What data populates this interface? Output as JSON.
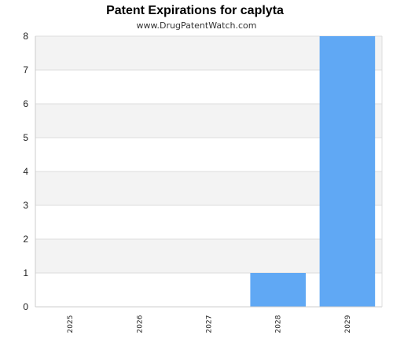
{
  "chart_data": {
    "type": "bar",
    "title": "Patent Expirations for caplyta",
    "subtitle": "www.DrugPatentWatch.com",
    "categories": [
      "2025",
      "2026",
      "2027",
      "2028",
      "2029"
    ],
    "values": [
      0,
      0,
      0,
      1,
      8
    ],
    "xlabel": "",
    "ylabel": "",
    "ylim": [
      0,
      8
    ],
    "yticks": [
      0,
      1,
      2,
      3,
      4,
      5,
      6,
      7,
      8
    ],
    "grid": true,
    "legend": "none",
    "colors": {
      "bar": "#60a8f4",
      "band": "#f3f3f3",
      "gridline": "#dddddd",
      "axis": "#cccccc"
    }
  }
}
